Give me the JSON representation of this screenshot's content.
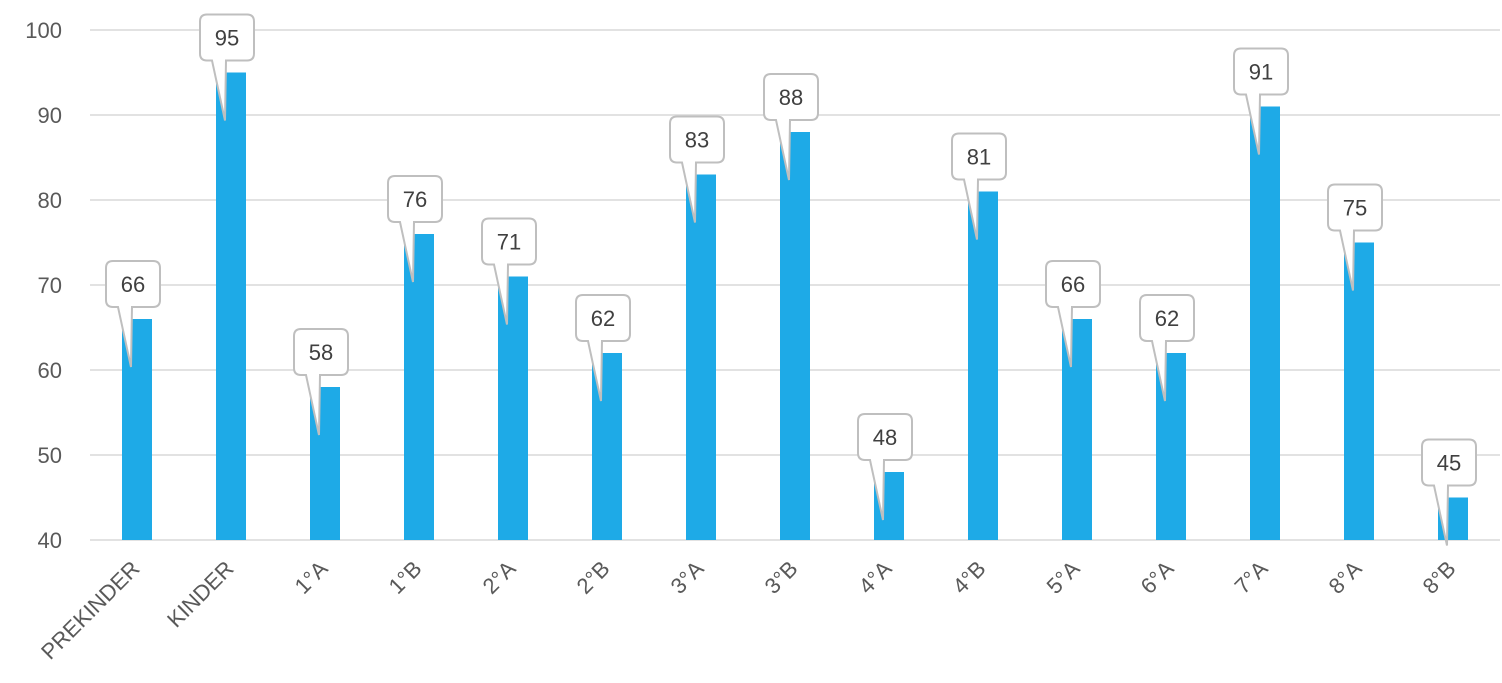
{
  "chart_data": {
    "type": "bar",
    "title": "",
    "xlabel": "",
    "ylabel": "",
    "categories": [
      "PREKINDER",
      "KINDER",
      "1°A",
      "1°B",
      "2°A",
      "2°B",
      "3°A",
      "3°B",
      "4°A",
      "4°B",
      "5°A",
      "6°A",
      "7°A",
      "8°A",
      "8°B"
    ],
    "values": [
      66,
      95,
      58,
      76,
      71,
      62,
      83,
      88,
      48,
      81,
      66,
      62,
      91,
      75,
      45
    ],
    "ylim": [
      40,
      100
    ],
    "yticks": [
      40,
      50,
      60,
      70,
      80,
      90,
      100
    ],
    "grid": true,
    "legend": "none",
    "bar_color": "#1eaae7",
    "data_labels": "callouts"
  }
}
